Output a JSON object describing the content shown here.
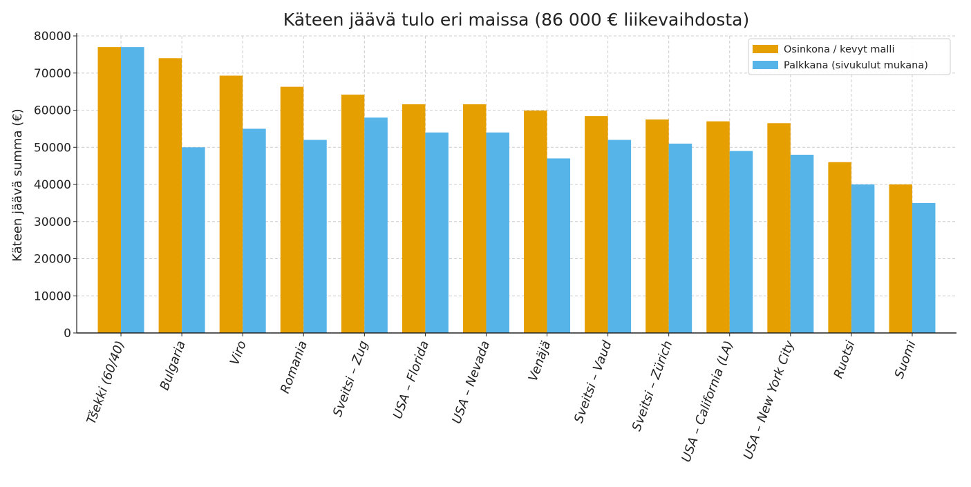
{
  "chart_data": {
    "type": "bar",
    "title": "Käteen jäävä tulo eri maissa (86 000 € liikevaihdosta)",
    "xlabel": "",
    "ylabel": "Käteen jäävä summa (€)",
    "ylim": [
      0,
      80000
    ],
    "yticks": [
      "0",
      "10000",
      "20000",
      "30000",
      "40000",
      "50000",
      "60000",
      "70000",
      "80000"
    ],
    "grid": true,
    "legend_position": "top-right",
    "categories": [
      "Tšekki (60/40)",
      "Bulgaria",
      "Viro",
      "Romania",
      "Sveitsi – Zug",
      "USA – Florida",
      "USA – Nevada",
      "Venäjä",
      "Sveitsi – Vaud",
      "Sveitsi – Zürich",
      "USA – California (LA)",
      "USA – New York City",
      "Ruotsi",
      "Suomi"
    ],
    "series": [
      {
        "name": "Osinkona / kevyt malli",
        "color": "#E69F00",
        "values": [
          77000,
          74000,
          69300,
          66300,
          64200,
          61600,
          61600,
          59900,
          58400,
          57500,
          57000,
          56500,
          46000,
          40000
        ]
      },
      {
        "name": "Palkkana (sivukulut mukana)",
        "color": "#56B4E9",
        "values": [
          77000,
          50000,
          55000,
          52000,
          58000,
          54000,
          54000,
          47000,
          52000,
          51000,
          49000,
          48000,
          40000,
          35000
        ]
      }
    ]
  }
}
